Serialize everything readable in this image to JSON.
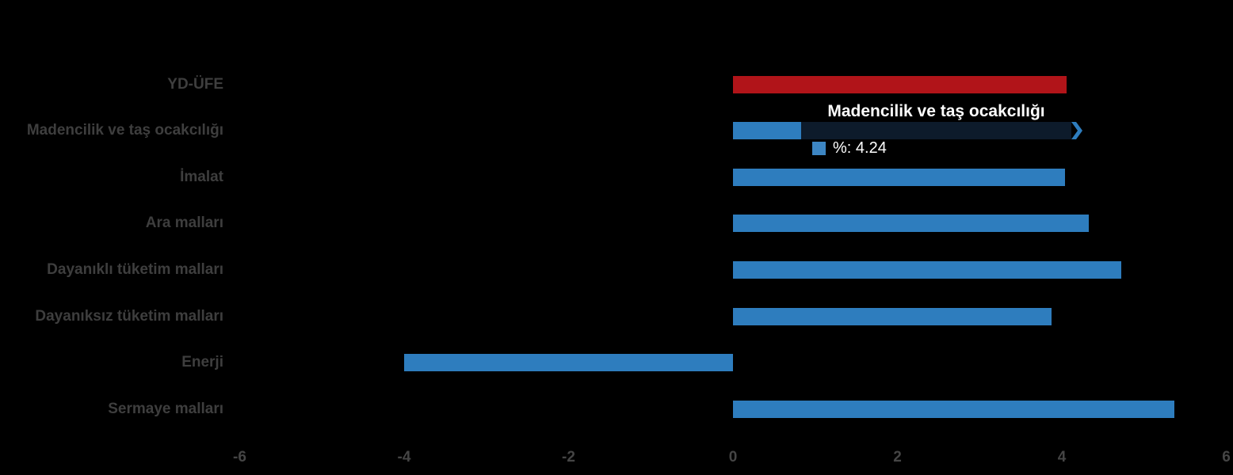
{
  "chart_data": {
    "type": "bar",
    "orientation": "horizontal",
    "title": "",
    "xlabel": "",
    "ylabel": "",
    "categories": [
      "YD-ÜFE",
      "Madencilik ve taş ocakcılığı",
      "İmalat",
      "Ara malları",
      "Dayanıklı tüketim malları",
      "Dayanıksız tüketim malları",
      "Enerji",
      "Sermaye malları"
    ],
    "values": [
      4.06,
      4.24,
      4.04,
      4.33,
      4.72,
      3.87,
      -4.0,
      5.37
    ],
    "series_name": "%",
    "colors": [
      "#b11419",
      "#2e7dbe",
      "#2e7dbe",
      "#2e7dbe",
      "#2e7dbe",
      "#2e7dbe",
      "#2e7dbe",
      "#2e7dbe"
    ],
    "highlighted_index": 1,
    "xlim": [
      -6,
      6
    ],
    "x_ticks": [
      "-6",
      "-4",
      "-2",
      "0",
      "2",
      "4",
      "6"
    ],
    "grid": false,
    "legend": false,
    "background": "#000000",
    "category_label_color": "#3e3e3e",
    "tick_label_color": "#454545"
  },
  "tooltip": {
    "title": "Madencilik ve taş ocakcılığı",
    "value_text": "%: 4.24",
    "series_color": "#2e7dbe",
    "swatch_color": "#3d86c3",
    "panel_color": "#0d1b2b",
    "text_color": "#ffffff"
  }
}
